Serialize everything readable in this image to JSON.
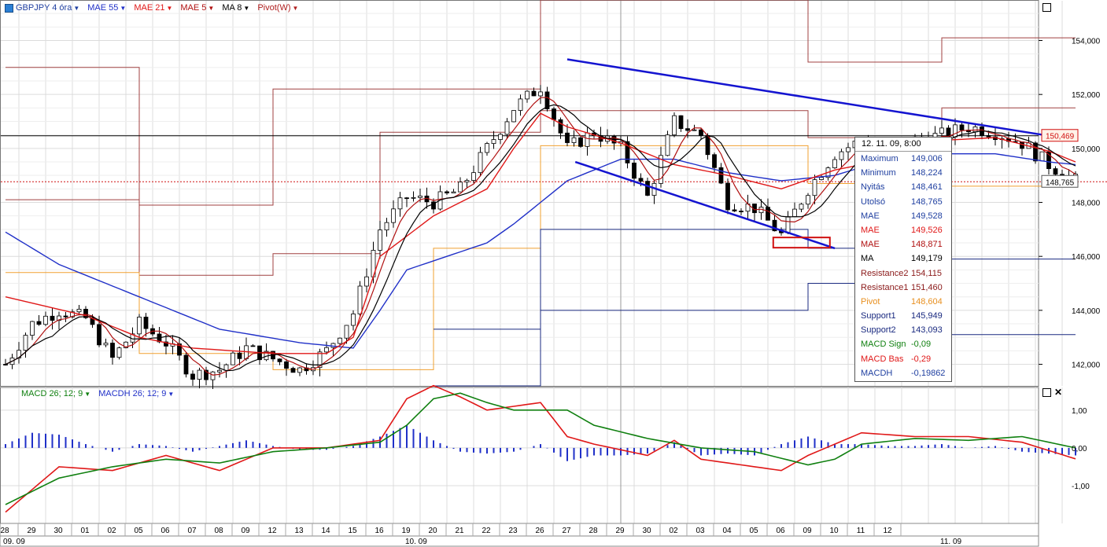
{
  "legend": {
    "items": [
      {
        "label": "GBPJPY 4 óra",
        "color": "#1f3fa0",
        "icon": "chart-icon"
      },
      {
        "label": "MAE 55",
        "color": "#2030c8"
      },
      {
        "label": "MAE 21",
        "color": "#e01818"
      },
      {
        "label": "MAE 5",
        "color": "#b01010"
      },
      {
        "label": "MA 8",
        "color": "#000000"
      },
      {
        "label": "Pivot(W)",
        "color": "#b02020"
      }
    ]
  },
  "macd_legend": {
    "items": [
      {
        "label": "MACD 26; 12; 9",
        "color": "#108010"
      },
      {
        "label": "MACDH 26; 12; 9",
        "color": "#2030c8"
      }
    ]
  },
  "price_labels": {
    "last_resistance": "150,469",
    "current": "148,765"
  },
  "info": {
    "header": "12. 11. 09, 8:00",
    "rows": [
      {
        "k": "Maximum",
        "v": "149,006",
        "color": "#1f3fa0"
      },
      {
        "k": "Minimum",
        "v": "148,224",
        "color": "#1f3fa0"
      },
      {
        "k": "Nyitás",
        "v": "148,461",
        "color": "#1f3fa0"
      },
      {
        "k": "Utolsó",
        "v": "148,765",
        "color": "#1f3fa0"
      },
      {
        "k": "MAE",
        "v": "149,528",
        "color": "#1f3fa0"
      },
      {
        "k": "MAE",
        "v": "149,526",
        "color": "#e01818"
      },
      {
        "k": "MAE",
        "v": "148,871",
        "color": "#b01010"
      },
      {
        "k": "MA",
        "v": "149,179",
        "color": "#000000"
      },
      {
        "k": "Resistance2",
        "v": "154,115",
        "color": "#8b1a1a"
      },
      {
        "k": "Resistance1",
        "v": "151,460",
        "color": "#8b1a1a"
      },
      {
        "k": "Pivot",
        "v": "148,604",
        "color": "#e89020"
      },
      {
        "k": "Support1",
        "v": "145,949",
        "color": "#1a2a80"
      },
      {
        "k": "Support2",
        "v": "143,093",
        "color": "#1a2a80"
      },
      {
        "k": "MACD Sign",
        "v": "-0,09",
        "color": "#108010"
      },
      {
        "k": "MACD Bas",
        "v": "-0,29",
        "color": "#e01818"
      },
      {
        "k": "MACDH",
        "v": "-0,19862",
        "color": "#1f3fa0"
      }
    ]
  },
  "chart_data": {
    "type": "candlestick",
    "ylim": [
      141.2,
      155.5
    ],
    "y_ticks": [
      "142,000",
      "144,000",
      "146,000",
      "148,000",
      "150,000",
      "152,000",
      "154,000"
    ],
    "y_tick_values": [
      142,
      144,
      146,
      148,
      150,
      152,
      154
    ],
    "macd_ylim": [
      -2.0,
      1.6
    ],
    "macd_ticks": [
      "1,00",
      "0,00",
      "-1,00"
    ],
    "macd_tick_values": [
      1,
      0,
      -1
    ],
    "x_day_labels": [
      "28",
      "29",
      "30",
      "01",
      "02",
      "05",
      "06",
      "07",
      "08",
      "09",
      "12",
      "13",
      "14",
      "15",
      "16",
      "19",
      "20",
      "21",
      "22",
      "23",
      "26",
      "27",
      "28",
      "29",
      "30",
      "02",
      "03",
      "04",
      "05",
      "06",
      "09",
      "10",
      "11",
      "12"
    ],
    "x_months": [
      {
        "label": "09. 09",
        "day_index": 0
      },
      {
        "label": "10. 09",
        "day_index": 15
      },
      {
        "label": "11. 09",
        "day_index": 35
      }
    ],
    "close_anchors": [
      [
        0,
        142.0
      ],
      [
        1,
        143.5
      ],
      [
        2,
        144.0
      ],
      [
        3,
        143.7
      ],
      [
        4,
        142.2
      ],
      [
        5,
        143.5
      ],
      [
        6,
        142.8
      ],
      [
        7,
        141.6
      ],
      [
        8,
        141.8
      ],
      [
        9,
        142.6
      ],
      [
        10,
        142.2
      ],
      [
        11,
        141.8
      ],
      [
        12,
        142.5
      ],
      [
        13,
        143.9
      ],
      [
        14,
        147.0
      ],
      [
        15,
        148.2
      ],
      [
        16,
        148.0
      ],
      [
        17,
        148.5
      ],
      [
        18,
        150.0
      ],
      [
        19,
        151.5
      ],
      [
        20,
        152.3
      ],
      [
        21,
        150.0
      ],
      [
        22,
        150.6
      ],
      [
        23,
        150.0
      ],
      [
        24,
        148.2
      ],
      [
        25,
        151.0
      ],
      [
        26,
        150.5
      ],
      [
        27,
        148.0
      ],
      [
        28,
        147.8
      ],
      [
        29,
        146.8
      ],
      [
        30,
        148.5
      ],
      [
        31,
        149.8
      ],
      [
        32,
        150.3
      ],
      [
        33,
        149.2
      ],
      [
        34,
        150.3
      ],
      [
        35,
        150.5
      ],
      [
        36,
        150.8
      ],
      [
        37,
        150.6
      ],
      [
        38,
        150.2
      ],
      [
        39,
        149.4
      ],
      [
        40,
        148.8
      ]
    ],
    "mae55_anchors": [
      [
        0,
        146.9
      ],
      [
        2,
        145.7
      ],
      [
        5,
        144.5
      ],
      [
        8,
        143.3
      ],
      [
        11,
        142.8
      ],
      [
        13,
        142.6
      ],
      [
        14,
        144.0
      ],
      [
        15,
        145.5
      ],
      [
        18,
        146.5
      ],
      [
        19,
        147.2
      ],
      [
        20,
        148.0
      ],
      [
        21,
        148.8
      ],
      [
        23,
        149.6
      ],
      [
        25,
        149.6
      ],
      [
        27,
        149.1
      ],
      [
        29,
        148.8
      ],
      [
        31,
        149.0
      ],
      [
        33,
        149.6
      ],
      [
        35,
        149.8
      ],
      [
        37,
        149.8
      ],
      [
        39,
        149.5
      ],
      [
        40,
        149.4
      ]
    ],
    "mae21_anchors": [
      [
        0,
        144.5
      ],
      [
        3,
        143.8
      ],
      [
        5,
        143.0
      ],
      [
        7,
        142.6
      ],
      [
        10,
        142.4
      ],
      [
        12,
        142.4
      ],
      [
        13,
        143.0
      ],
      [
        14,
        146.0
      ],
      [
        16,
        147.5
      ],
      [
        18,
        148.5
      ],
      [
        19,
        150.0
      ],
      [
        20,
        151.3
      ],
      [
        21,
        150.8
      ],
      [
        23,
        150.2
      ],
      [
        25,
        149.4
      ],
      [
        27,
        149.0
      ],
      [
        29,
        148.5
      ],
      [
        31,
        149.2
      ],
      [
        33,
        149.6
      ],
      [
        35,
        150.3
      ],
      [
        37,
        150.4
      ],
      [
        39,
        149.9
      ],
      [
        40,
        149.5
      ]
    ],
    "pivot_resistance2": [
      [
        0,
        153.0
      ],
      [
        5,
        153.0
      ],
      [
        5,
        147.9
      ],
      [
        10,
        147.9
      ],
      [
        10,
        152.2
      ],
      [
        20,
        152.2
      ],
      [
        20,
        155.5
      ],
      [
        30,
        155.5
      ],
      [
        30,
        153.2
      ],
      [
        35,
        153.2
      ],
      [
        35,
        154.1
      ],
      [
        40,
        154.1
      ]
    ],
    "pivot_resistance1": [
      [
        0,
        148.1
      ],
      [
        5,
        148.1
      ],
      [
        5,
        145.3
      ],
      [
        10,
        145.3
      ],
      [
        10,
        146.1
      ],
      [
        14,
        146.1
      ],
      [
        14,
        150.6
      ],
      [
        20,
        150.6
      ],
      [
        20,
        151.4
      ],
      [
        30,
        151.4
      ],
      [
        30,
        150.4
      ],
      [
        35,
        150.4
      ],
      [
        35,
        151.5
      ],
      [
        40,
        151.5
      ]
    ],
    "pivot_pivot": [
      [
        0,
        145.4
      ],
      [
        5,
        145.4
      ],
      [
        5,
        142.4
      ],
      [
        10,
        142.4
      ],
      [
        10,
        141.8
      ],
      [
        16,
        141.8
      ],
      [
        16,
        146.3
      ],
      [
        20,
        146.3
      ],
      [
        20,
        150.1
      ],
      [
        30,
        150.1
      ],
      [
        30,
        148.7
      ],
      [
        35,
        148.7
      ],
      [
        35,
        148.6
      ],
      [
        40,
        148.6
      ]
    ],
    "pivot_support1": [
      [
        16,
        141.2
      ],
      [
        20,
        141.2
      ],
      [
        20,
        147.0
      ],
      [
        30,
        147.0
      ],
      [
        30,
        146.3
      ],
      [
        35,
        146.3
      ],
      [
        35,
        145.9
      ],
      [
        40,
        145.9
      ]
    ],
    "pivot_support2": [
      [
        16,
        143.3
      ],
      [
        20,
        143.3
      ],
      [
        20,
        144.0
      ],
      [
        30,
        144.0
      ],
      [
        30,
        145.0
      ],
      [
        35,
        145.0
      ],
      [
        35,
        143.1
      ],
      [
        40,
        143.1
      ]
    ],
    "trendlines": [
      {
        "from": [
          21.0,
          153.3
        ],
        "to": [
          38.8,
          150.5
        ]
      },
      {
        "from": [
          21.3,
          149.5
        ],
        "to": [
          31.0,
          146.3
        ]
      }
    ],
    "horizontal_lines": [
      150.469,
      148.765
    ],
    "macd_signal_anchors": [
      [
        0,
        -1.5
      ],
      [
        2,
        -0.8
      ],
      [
        4,
        -0.5
      ],
      [
        6,
        -0.3
      ],
      [
        8,
        -0.4
      ],
      [
        10,
        -0.1
      ],
      [
        12,
        0.0
      ],
      [
        14,
        0.15
      ],
      [
        15,
        0.6
      ],
      [
        16,
        1.3
      ],
      [
        17,
        1.45
      ],
      [
        18,
        1.2
      ],
      [
        19,
        1.0
      ],
      [
        20,
        1.0
      ],
      [
        21,
        1.0
      ],
      [
        22,
        0.6
      ],
      [
        24,
        0.25
      ],
      [
        26,
        0.0
      ],
      [
        28,
        -0.1
      ],
      [
        30,
        -0.45
      ],
      [
        31,
        -0.3
      ],
      [
        32,
        0.1
      ],
      [
        34,
        0.25
      ],
      [
        36,
        0.2
      ],
      [
        38,
        0.3
      ],
      [
        40,
        0.0
      ]
    ],
    "macd_base_anchors": [
      [
        0,
        -1.7
      ],
      [
        2,
        -0.5
      ],
      [
        4,
        -0.6
      ],
      [
        6,
        -0.2
      ],
      [
        8,
        -0.6
      ],
      [
        10,
        0.0
      ],
      [
        12,
        0.0
      ],
      [
        14,
        0.2
      ],
      [
        15,
        1.3
      ],
      [
        16,
        1.65
      ],
      [
        17,
        1.35
      ],
      [
        18,
        1.0
      ],
      [
        19,
        1.1
      ],
      [
        20,
        1.2
      ],
      [
        21,
        0.3
      ],
      [
        22,
        0.1
      ],
      [
        24,
        -0.2
      ],
      [
        25,
        0.2
      ],
      [
        26,
        -0.3
      ],
      [
        28,
        -0.5
      ],
      [
        29,
        -0.6
      ],
      [
        30,
        -0.2
      ],
      [
        31,
        0.1
      ],
      [
        32,
        0.4
      ],
      [
        34,
        0.3
      ],
      [
        36,
        0.3
      ],
      [
        38,
        0.15
      ],
      [
        40,
        -0.29
      ]
    ],
    "macdh_anchors": [
      [
        0,
        0.1
      ],
      [
        1,
        0.4
      ],
      [
        2,
        0.35
      ],
      [
        3,
        0.1
      ],
      [
        4,
        -0.1
      ],
      [
        5,
        0.1
      ],
      [
        6,
        0.05
      ],
      [
        7,
        -0.1
      ],
      [
        8,
        0.05
      ],
      [
        9,
        0.2
      ],
      [
        10,
        0.05
      ],
      [
        11,
        -0.05
      ],
      [
        12,
        -0.05
      ],
      [
        13,
        0.05
      ],
      [
        14,
        0.3
      ],
      [
        15,
        0.6
      ],
      [
        16,
        0.2
      ],
      [
        17,
        -0.1
      ],
      [
        18,
        -0.15
      ],
      [
        19,
        -0.1
      ],
      [
        20,
        0.1
      ],
      [
        21,
        -0.35
      ],
      [
        22,
        -0.2
      ],
      [
        23,
        -0.2
      ],
      [
        24,
        -0.15
      ],
      [
        25,
        0.15
      ],
      [
        26,
        -0.2
      ],
      [
        27,
        -0.15
      ],
      [
        28,
        -0.2
      ],
      [
        29,
        0.1
      ],
      [
        30,
        0.3
      ],
      [
        31,
        0.1
      ],
      [
        32,
        0.1
      ],
      [
        33,
        0.05
      ],
      [
        34,
        0.05
      ],
      [
        35,
        0.1
      ],
      [
        36,
        0.0
      ],
      [
        37,
        0.05
      ],
      [
        38,
        -0.1
      ],
      [
        39,
        -0.15
      ],
      [
        40,
        -0.2
      ]
    ]
  }
}
